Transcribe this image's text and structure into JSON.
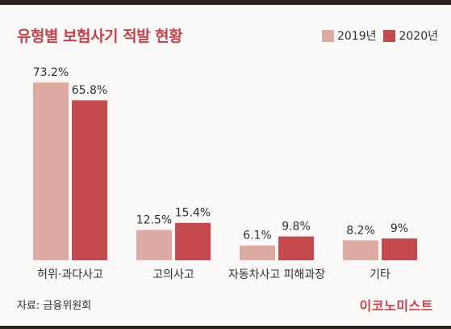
{
  "page": {
    "title": "유형별 보험사기 적발 현황",
    "source": "자료: 금융위원회",
    "brand": "이코노미스트"
  },
  "colors": {
    "s2019": "#ddaba1",
    "s2020": "#c4494d",
    "accent": "#c4444b"
  },
  "chart_data": {
    "type": "bar",
    "title": "유형별 보험사기 적발 현황",
    "categories": [
      "허위·과다사고",
      "고의사고",
      "자동차사고 피해과장",
      "기타"
    ],
    "series": [
      {
        "name": "2019년",
        "values": [
          73.2,
          12.5,
          6.1,
          8.2
        ],
        "labels": [
          "73.2%",
          "12.5%",
          "6.1%",
          "8.2%"
        ]
      },
      {
        "name": "2020년",
        "values": [
          65.8,
          15.4,
          9.8,
          9.0
        ],
        "labels": [
          "65.8%",
          "15.4%",
          "9.8%",
          "9%"
        ]
      }
    ],
    "legend_position": "top-right",
    "grid": false,
    "ylim": [
      0,
      73.2
    ]
  }
}
